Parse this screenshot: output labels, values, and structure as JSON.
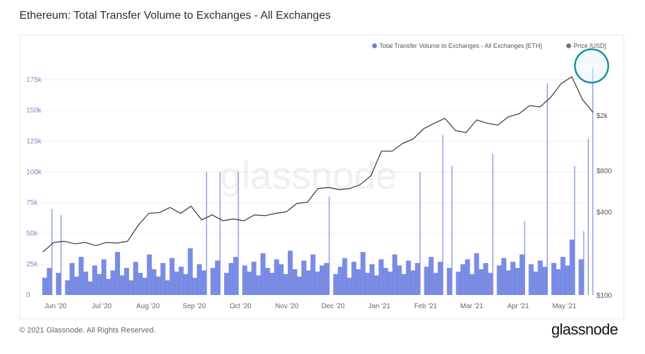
{
  "title": "Ethereum: Total Transfer Volume to Exchanges - All Exchanges",
  "footer": {
    "copyright": "© 2021 Glassnode. All Rights Reserved.",
    "brand": "glassnode",
    "watermark": "glassnode"
  },
  "colors": {
    "volume": "#6b7fe0",
    "price": "#333333",
    "highlight": "#1a8fa0",
    "grid": "#efefef"
  },
  "chart_data": {
    "type": "bar+line",
    "title": "Ethereum: Total Transfer Volume to Exchanges - All Exchanges",
    "legend": [
      "Total Transfer Volume to Exchanges - All Exchanges [ETH]",
      "Price [USD]"
    ],
    "legend_position": "top-right",
    "x_ticks": [
      "Jun '20",
      "Jul '20",
      "Aug '20",
      "Sep '20",
      "Oct '20",
      "Nov '20",
      "Dec '20",
      "Jan '21",
      "Feb '21",
      "Mar '21",
      "Apr '21",
      "May '21"
    ],
    "y_left": {
      "ticks": [
        0,
        25000,
        50000,
        75000,
        100000,
        125000,
        150000,
        175000
      ],
      "tick_labels": [
        "0",
        "25k",
        "50k",
        "75k",
        "100k",
        "125k",
        "150k",
        "175k"
      ],
      "range": [
        0,
        200000
      ]
    },
    "y_right": {
      "scale": "log",
      "ticks": [
        100,
        400,
        800,
        2000
      ],
      "tick_labels": [
        "$100",
        "$400",
        "$800",
        "$2k"
      ]
    },
    "series": [
      {
        "name": "Total Transfer Volume to Exchanges - All Exchanges [ETH]",
        "kind": "bar",
        "sampling": "every ~3 days, May 25 2020 - May 23 2021",
        "values": [
          14,
          22,
          70,
          18,
          65,
          12,
          26,
          15,
          31,
          19,
          11,
          24,
          17,
          29,
          13,
          20,
          35,
          16,
          22,
          12,
          27,
          18,
          14,
          33,
          21,
          15,
          26,
          12,
          30,
          19,
          23,
          17,
          38,
          14,
          25,
          20,
          100,
          22,
          28,
          100,
          18,
          26,
          31,
          100,
          24,
          19,
          27,
          16,
          34,
          22,
          18,
          29,
          25,
          17,
          36,
          21,
          15,
          28,
          20,
          33,
          19,
          24,
          26,
          80,
          17,
          23,
          30,
          14,
          27,
          21,
          35,
          18,
          25,
          16,
          29,
          22,
          19,
          33,
          24,
          17,
          28,
          20,
          26,
          100,
          23,
          31,
          18,
          27,
          130,
          22,
          105,
          19,
          25,
          29,
          17,
          34,
          21,
          26,
          18,
          115,
          24,
          30,
          20,
          27,
          22,
          33,
          60,
          25,
          19,
          28,
          23,
          172,
          26,
          21,
          31,
          24,
          45,
          105,
          29,
          52,
          127,
          185
        ]
      },
      {
        "name": "Price [USD]",
        "kind": "line",
        "sampling": "weekly",
        "values": [
          205,
          240,
          245,
          235,
          240,
          228,
          240,
          238,
          245,
          320,
          390,
          395,
          430,
          390,
          440,
          350,
          380,
          345,
          355,
          345,
          380,
          375,
          390,
          400,
          460,
          470,
          590,
          600,
          580,
          590,
          630,
          730,
          1100,
          1100,
          1250,
          1350,
          1600,
          1750,
          1900,
          1550,
          1500,
          1850,
          1750,
          1700,
          1950,
          2050,
          2350,
          2300,
          2700,
          3400,
          3800,
          2600,
          2100
        ]
      }
    ],
    "annotation": "circle highlighting final volume spike"
  }
}
